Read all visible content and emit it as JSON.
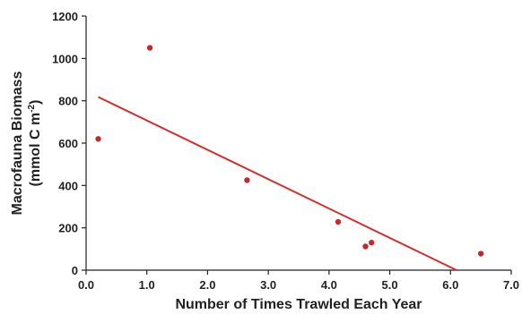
{
  "chart_data": {
    "type": "scatter",
    "xlabel": "Number of Times Trawled Each Year",
    "ylabel_line1": "Macrofauna Biomass",
    "ylabel_line2_prefix": "(mmol C m",
    "ylabel_line2_exponent": "-2",
    "ylabel_line2_suffix": ")",
    "xlim": [
      0.0,
      7.0
    ],
    "ylim": [
      0,
      1200
    ],
    "x_ticks": [
      0.0,
      1.0,
      2.0,
      3.0,
      4.0,
      5.0,
      6.0,
      7.0
    ],
    "x_tick_labels": [
      "0.0",
      "1.0",
      "2.0",
      "3.0",
      "4.0",
      "5.0",
      "6.0",
      "7.0"
    ],
    "y_ticks": [
      0,
      200,
      400,
      600,
      800,
      1000,
      1200
    ],
    "y_tick_labels": [
      "0",
      "200",
      "400",
      "600",
      "800",
      "1000",
      "1200"
    ],
    "grid": false,
    "points": [
      {
        "x": 0.2,
        "y": 620
      },
      {
        "x": 1.05,
        "y": 1050
      },
      {
        "x": 2.65,
        "y": 425
      },
      {
        "x": 4.15,
        "y": 228
      },
      {
        "x": 4.6,
        "y": 112
      },
      {
        "x": 4.7,
        "y": 130
      },
      {
        "x": 6.5,
        "y": 78
      }
    ],
    "regression_line": {
      "x": [
        0.2,
        6.1
      ],
      "y": [
        818,
        0
      ]
    },
    "colors": {
      "points": "#c62828",
      "line": "#d32f2f",
      "axis": "#222222"
    }
  }
}
